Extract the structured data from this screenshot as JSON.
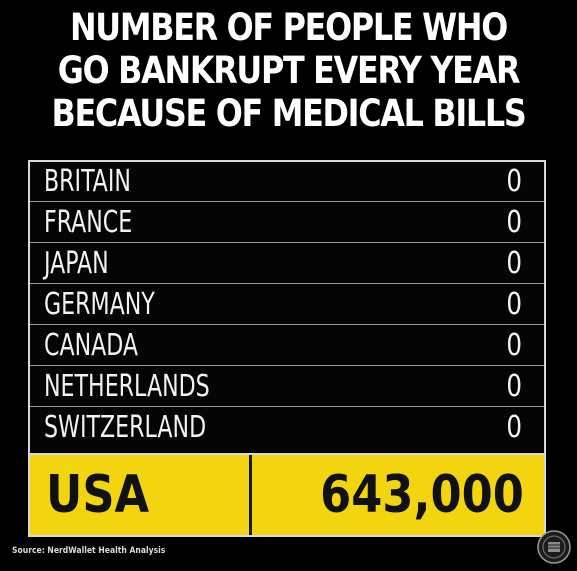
{
  "chart_data": {
    "type": "table",
    "title_lines": [
      "NUMBER OF PEOPLE WHO",
      "GO BANKRUPT EVERY YEAR",
      "BECAUSE OF MEDICAL BILLS"
    ],
    "rows": [
      {
        "country": "BRITAIN",
        "value": "0"
      },
      {
        "country": "FRANCE",
        "value": "0"
      },
      {
        "country": "JAPAN",
        "value": "0"
      },
      {
        "country": "GERMANY",
        "value": "0"
      },
      {
        "country": "CANADA",
        "value": "0"
      },
      {
        "country": "NETHERLANDS",
        "value": "0"
      },
      {
        "country": "SWITZERLAND",
        "value": "0"
      }
    ],
    "highlight": {
      "country": "USA",
      "value": "643,000"
    },
    "source": "Source: NerdWallet Health Analysis"
  },
  "colors": {
    "background": "#000000",
    "highlight": "#f2d50f",
    "text": "#ffffff",
    "highlight_text": "#111111"
  },
  "icons": {
    "logo": "seal-logo-icon"
  }
}
